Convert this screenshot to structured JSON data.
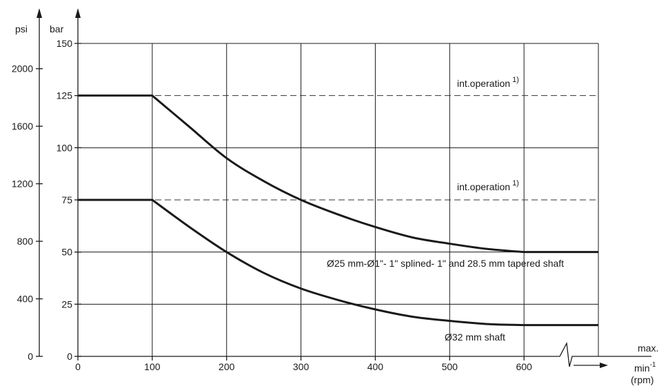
{
  "chart_data": {
    "type": "line",
    "x_ticks": [
      "0",
      "100",
      "200",
      "300",
      "400",
      "500",
      "600"
    ],
    "bar_ticks": [
      "0",
      "25",
      "50",
      "75",
      "100",
      "125",
      "150"
    ],
    "psi_ticks": [
      "0",
      "400",
      "800",
      "1200",
      "1600",
      "2000"
    ],
    "xlim": [
      0,
      700
    ],
    "ylim_bar": [
      0,
      150
    ],
    "ylabel_left": "psi",
    "ylabel_right": "bar",
    "x_unit_label": "min",
    "x_unit_exponent": "-1",
    "x_unit_sub": "(rpm)",
    "x_max_label": "max.",
    "grid": true,
    "series": [
      {
        "label": "Ø25 mm-Ø1\"- 1\" splined- 1\" and 28.5 mm tapered shaft",
        "x": [
          0,
          100,
          150,
          200,
          250,
          300,
          350,
          400,
          450,
          500,
          550,
          600,
          700
        ],
        "y": [
          125,
          125,
          110,
          95,
          84,
          75,
          68,
          62,
          57,
          54,
          51.5,
          50,
          50
        ]
      },
      {
        "label": "Ø32 mm shaft",
        "x": [
          0,
          100,
          150,
          200,
          250,
          300,
          350,
          400,
          450,
          500,
          550,
          600,
          700
        ],
        "y": [
          75,
          75,
          62,
          50,
          40,
          32.5,
          27,
          22.5,
          19,
          17,
          15.5,
          15,
          15
        ]
      }
    ],
    "reference_lines": [
      {
        "y": 125,
        "label": "int.operation",
        "superscript": "1)"
      },
      {
        "y": 75,
        "label": "int.operation",
        "superscript": "1)"
      }
    ]
  }
}
